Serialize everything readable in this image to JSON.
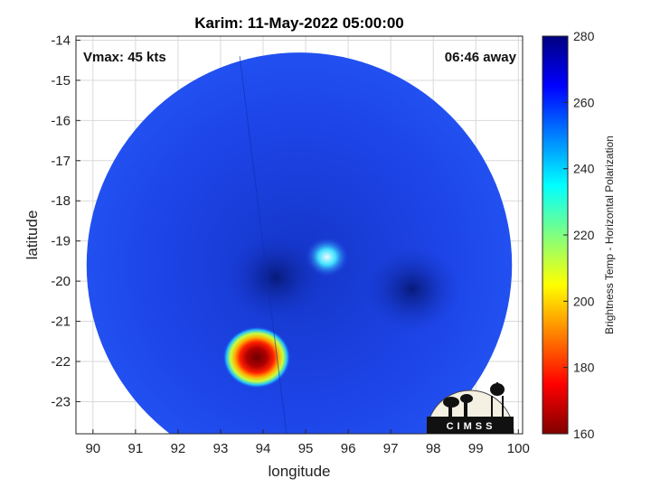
{
  "chart_data": {
    "type": "heatmap",
    "title": "Karim: 11-May-2022 05:00:00",
    "xlabel": "longitude",
    "ylabel": "latitude",
    "xlim": [
      89.6,
      100.1
    ],
    "ylim": [
      -23.8,
      -13.9
    ],
    "xticks": [
      90,
      91,
      92,
      93,
      94,
      95,
      96,
      97,
      98,
      99,
      100
    ],
    "yticks": [
      -14,
      -15,
      -16,
      -17,
      -18,
      -19,
      -20,
      -21,
      -22,
      -23
    ],
    "grid": true,
    "annotations": {
      "vmax": "Vmax: 45 kts",
      "away": "06:46 away"
    },
    "colorbar": {
      "label": "Brightness Temp - Horizontal Polarization",
      "range": [
        160,
        280
      ],
      "ticks": [
        280,
        260,
        240,
        220,
        200,
        180,
        160
      ]
    },
    "swath": {
      "center_lon": 94.85,
      "center_lat": -19.6,
      "radius_deg": 5.0
    },
    "features": [
      {
        "lon": 93.85,
        "lat": -21.9,
        "value": 165
      },
      {
        "lon": 95.5,
        "lat": -19.4,
        "value": 232
      },
      {
        "lon": 94.3,
        "lat": -19.9,
        "value": 272
      },
      {
        "lon": 97.5,
        "lat": -20.2,
        "value": 270
      }
    ],
    "logo": "CIMSS",
    "colors": {
      "background_field": "#1a40e6",
      "cold_core": "#8b0000",
      "warm_band": "#ffd400"
    }
  }
}
